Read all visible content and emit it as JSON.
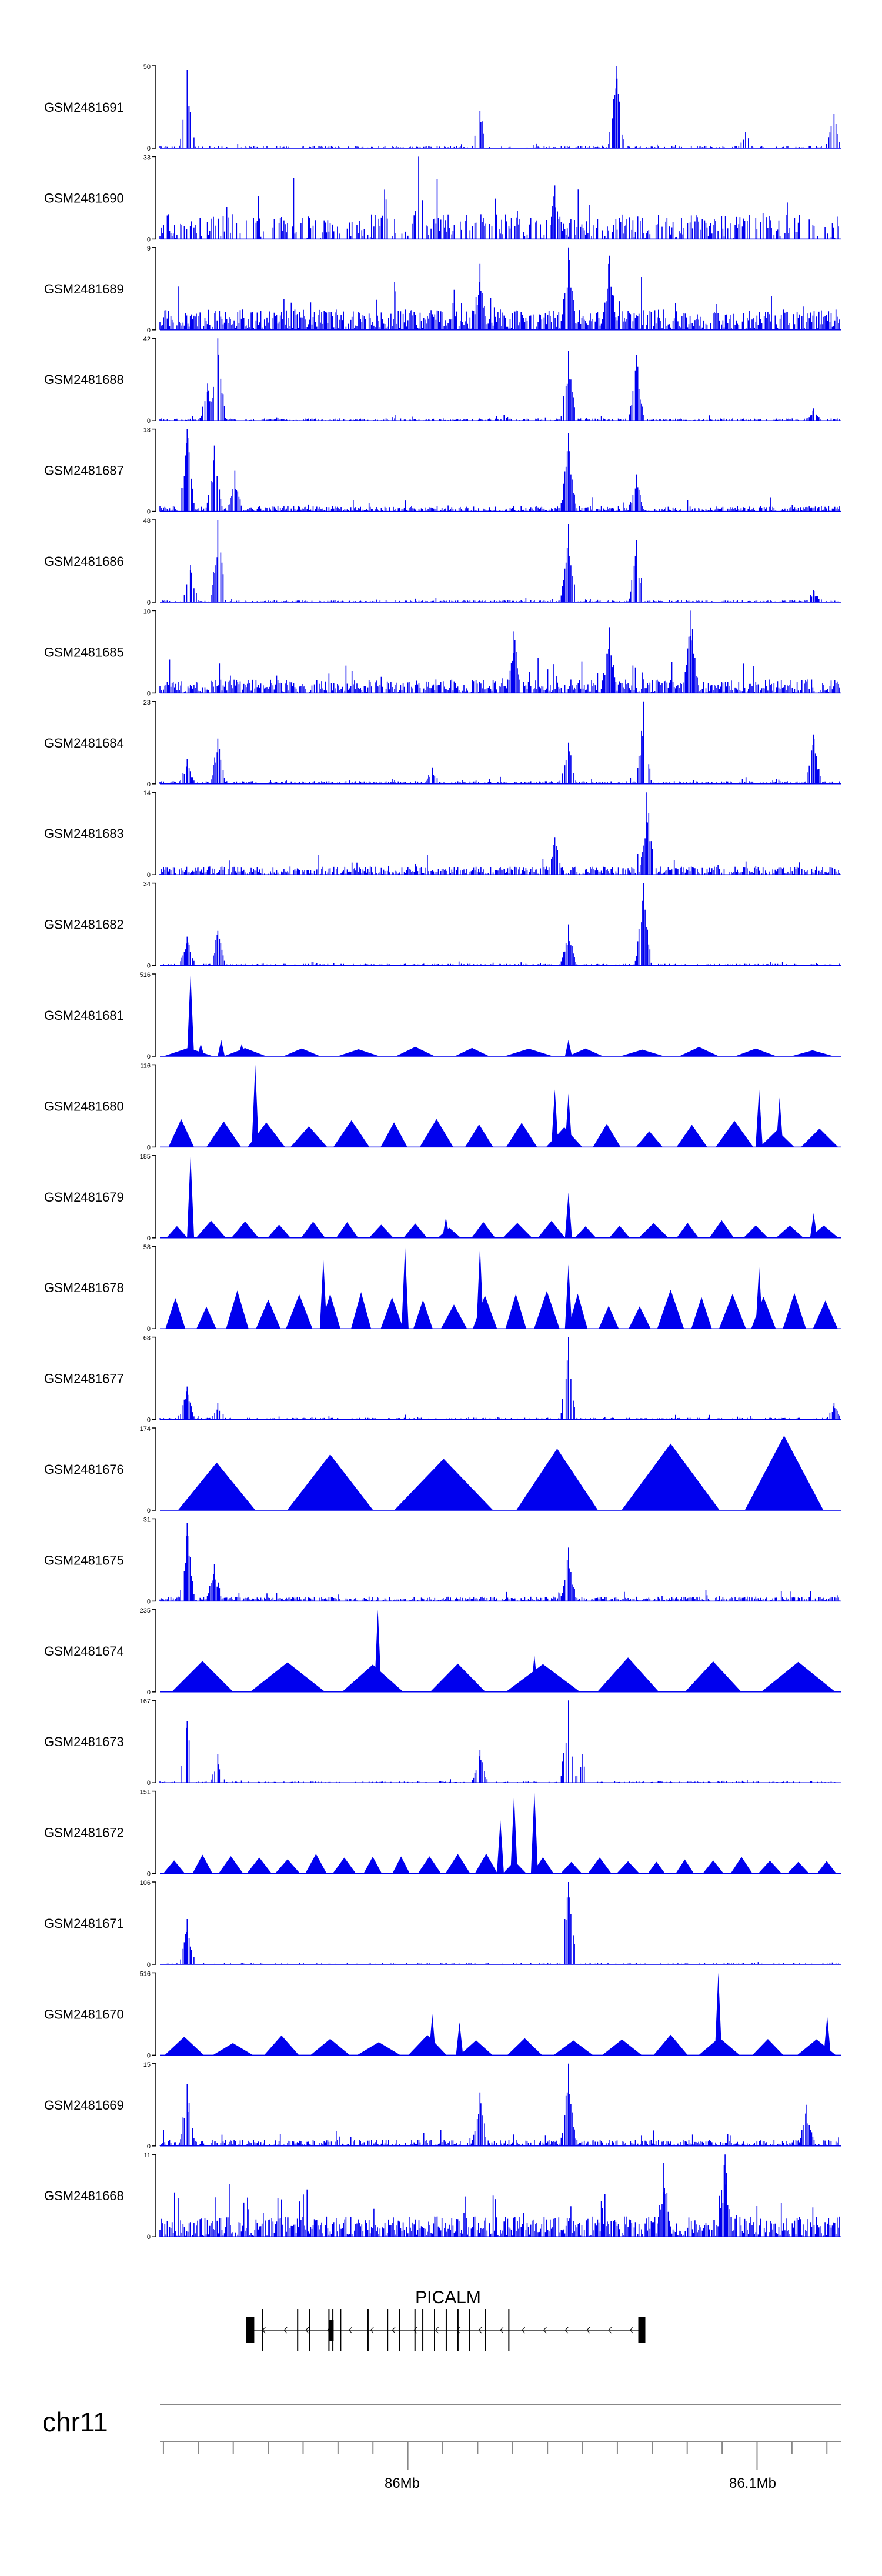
{
  "figure": {
    "chromosome": "chr11",
    "gene_name": "PICALM",
    "genome_ticks": [
      "86Mb",
      "86.1Mb"
    ]
  },
  "colors": {
    "signal": "#0000ee",
    "axis": "#000000",
    "gene": "#000000",
    "ideogram": "#888888"
  },
  "chart_data": {
    "type": "area",
    "title": "",
    "xlabel": "",
    "ylabel": "",
    "x_range_bp": [
      85929000,
      86124000
    ],
    "genome_axis": {
      "chromosome": "chr11",
      "tick_labels": [
        "86Mb",
        "86.1Mb"
      ],
      "tick_positions_bp": [
        86000000,
        86100000
      ]
    },
    "gene": {
      "name": "PICALM",
      "strand": "-",
      "start_bp": 85955000,
      "end_bp": 86067000
    },
    "series": [
      {
        "name": "GSM2481691",
        "ymax": 50,
        "style": "dense",
        "density": 0.55,
        "noise": 0.05,
        "peaks": [
          [
            0.04,
            0.95
          ],
          [
            0.47,
            0.45
          ],
          [
            0.67,
            1.0
          ],
          [
            0.86,
            0.2
          ],
          [
            0.99,
            0.42
          ]
        ]
      },
      {
        "name": "GSM2481690",
        "ymax": 33,
        "style": "dense",
        "density": 0.6,
        "noise": 0.55,
        "peaks": [
          [
            0.38,
            1.0
          ],
          [
            0.58,
            0.65
          ],
          [
            0.33,
            0.6
          ]
        ]
      },
      {
        "name": "GSM2481689",
        "ymax": 9,
        "style": "dense",
        "density": 0.95,
        "noise": 0.45,
        "peaks": [
          [
            0.6,
            1.0
          ],
          [
            0.66,
            0.9
          ],
          [
            0.47,
            0.8
          ]
        ]
      },
      {
        "name": "GSM2481688",
        "ymax": 42,
        "style": "dense",
        "density": 0.8,
        "noise": 0.05,
        "peaks": [
          [
            0.07,
            0.45
          ],
          [
            0.085,
            1.0
          ],
          [
            0.6,
            0.85
          ],
          [
            0.7,
            0.8
          ],
          [
            0.96,
            0.15
          ]
        ]
      },
      {
        "name": "GSM2481687",
        "ymax": 18,
        "style": "dense",
        "density": 0.85,
        "noise": 0.12,
        "peaks": [
          [
            0.04,
            1.0
          ],
          [
            0.08,
            0.8
          ],
          [
            0.11,
            0.5
          ],
          [
            0.6,
            0.95
          ],
          [
            0.7,
            0.45
          ]
        ]
      },
      {
        "name": "GSM2481686",
        "ymax": 48,
        "style": "dense",
        "density": 0.8,
        "noise": 0.04,
        "peaks": [
          [
            0.045,
            0.45
          ],
          [
            0.085,
            1.0
          ],
          [
            0.6,
            0.95
          ],
          [
            0.7,
            0.75
          ],
          [
            0.96,
            0.15
          ]
        ]
      },
      {
        "name": "GSM2481685",
        "ymax": 10,
        "style": "dense",
        "density": 0.95,
        "noise": 0.3,
        "peaks": [
          [
            0.78,
            1.0
          ],
          [
            0.52,
            0.75
          ],
          [
            0.66,
            0.8
          ]
        ]
      },
      {
        "name": "GSM2481684",
        "ymax": 23,
        "style": "dense",
        "density": 0.8,
        "noise": 0.06,
        "peaks": [
          [
            0.04,
            0.3
          ],
          [
            0.085,
            0.55
          ],
          [
            0.4,
            0.2
          ],
          [
            0.6,
            0.5
          ],
          [
            0.71,
            1.0
          ],
          [
            0.96,
            0.6
          ]
        ]
      },
      {
        "name": "GSM2481683",
        "ymax": 14,
        "style": "dense",
        "density": 0.9,
        "noise": 0.18,
        "peaks": [
          [
            0.715,
            1.0
          ],
          [
            0.58,
            0.45
          ]
        ]
      },
      {
        "name": "GSM2481682",
        "ymax": 34,
        "style": "dense",
        "density": 0.85,
        "noise": 0.04,
        "peaks": [
          [
            0.04,
            0.35
          ],
          [
            0.085,
            0.42
          ],
          [
            0.6,
            0.5
          ],
          [
            0.71,
            1.0
          ]
        ]
      },
      {
        "name": "GSM2481681",
        "ymax": 516,
        "style": "triangles",
        "tri_height": 0.12,
        "count": 12,
        "peaks": [
          [
            0.045,
            1.0
          ],
          [
            0.09,
            0.2
          ],
          [
            0.6,
            0.2
          ],
          [
            0.06,
            0.15
          ],
          [
            0.12,
            0.15
          ]
        ]
      },
      {
        "name": "GSM2481680",
        "ymax": 116,
        "style": "triangles",
        "tri_height": 0.35,
        "count": 16,
        "peaks": [
          [
            0.14,
            1.0
          ],
          [
            0.6,
            0.65
          ],
          [
            0.58,
            0.7
          ],
          [
            0.88,
            0.7
          ],
          [
            0.91,
            0.6
          ]
        ]
      },
      {
        "name": "GSM2481679",
        "ymax": 185,
        "style": "triangles",
        "tri_height": 0.22,
        "count": 20,
        "peaks": [
          [
            0.045,
            1.0
          ],
          [
            0.6,
            0.55
          ],
          [
            0.42,
            0.25
          ],
          [
            0.96,
            0.3
          ]
        ]
      },
      {
        "name": "GSM2481678",
        "ymax": 58,
        "style": "triangles",
        "tri_height": 0.48,
        "count": 22,
        "peaks": [
          [
            0.36,
            1.0
          ],
          [
            0.47,
            1.0
          ],
          [
            0.24,
            0.85
          ],
          [
            0.6,
            0.78
          ],
          [
            0.88,
            0.75
          ]
        ]
      },
      {
        "name": "GSM2481677",
        "ymax": 68,
        "style": "dense",
        "density": 0.7,
        "noise": 0.04,
        "peaks": [
          [
            0.04,
            0.4
          ],
          [
            0.085,
            0.2
          ],
          [
            0.6,
            1.0
          ],
          [
            0.99,
            0.2
          ]
        ]
      },
      {
        "name": "GSM2481676",
        "ymax": 174,
        "style": "triangles",
        "tri_height": 1.0,
        "count": 6,
        "peaks": []
      },
      {
        "name": "GSM2481675",
        "ymax": 31,
        "style": "dense",
        "density": 0.85,
        "noise": 0.1,
        "peaks": [
          [
            0.04,
            0.95
          ],
          [
            0.6,
            0.65
          ],
          [
            0.08,
            0.45
          ]
        ]
      },
      {
        "name": "GSM2481674",
        "ymax": 235,
        "style": "triangles",
        "tri_height": 0.45,
        "count": 8,
        "peaks": [
          [
            0.32,
            1.0
          ],
          [
            0.55,
            0.45
          ]
        ]
      },
      {
        "name": "GSM2481673",
        "ymax": 167,
        "style": "dense",
        "density": 0.5,
        "noise": 0.03,
        "peaks": [
          [
            0.04,
            0.75
          ],
          [
            0.085,
            0.35
          ],
          [
            0.47,
            0.4
          ],
          [
            0.6,
            1.0
          ],
          [
            0.62,
            0.35
          ]
        ]
      },
      {
        "name": "GSM2481672",
        "ymax": 151,
        "style": "triangles",
        "tri_height": 0.25,
        "count": 24,
        "peaks": [
          [
            0.55,
            1.0
          ],
          [
            0.52,
            0.95
          ],
          [
            0.5,
            0.65
          ]
        ]
      },
      {
        "name": "GSM2481671",
        "ymax": 106,
        "style": "dense",
        "density": 0.45,
        "noise": 0.03,
        "peaks": [
          [
            0.04,
            0.55
          ],
          [
            0.6,
            1.0
          ]
        ]
      },
      {
        "name": "GSM2481670",
        "ymax": 516,
        "style": "triangles",
        "tri_height": 0.25,
        "count": 14,
        "peaks": [
          [
            0.82,
            1.0
          ],
          [
            0.4,
            0.5
          ],
          [
            0.44,
            0.4
          ],
          [
            0.98,
            0.48
          ]
        ]
      },
      {
        "name": "GSM2481669",
        "ymax": 15,
        "style": "dense",
        "density": 0.8,
        "noise": 0.14,
        "peaks": [
          [
            0.04,
            0.75
          ],
          [
            0.47,
            0.65
          ],
          [
            0.6,
            1.0
          ],
          [
            0.95,
            0.5
          ]
        ]
      },
      {
        "name": "GSM2481668",
        "ymax": 11,
        "style": "dense",
        "density": 0.95,
        "noise": 0.45,
        "peaks": [
          [
            0.83,
            1.0
          ],
          [
            0.74,
            0.9
          ]
        ]
      }
    ]
  }
}
